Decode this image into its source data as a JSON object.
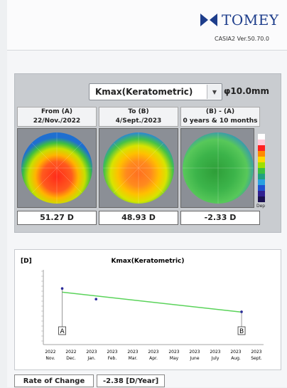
{
  "brand": {
    "name": "TOMEY",
    "model_line": "CASIA2 Ver.50.70.0"
  },
  "selector": {
    "value": "Kmax(Keratometric)",
    "diameter": "φ10.0mm"
  },
  "columns": [
    {
      "label": "From   (A)",
      "date": "22/Nov./2022",
      "value": "51.27 D"
    },
    {
      "label": "To   (B)",
      "date": "4/Sept./2023",
      "value": "48.93 D"
    },
    {
      "label": "(B) - (A)",
      "date": "0 years & 10 months",
      "value": "-2.33 D"
    }
  ],
  "color_scale": {
    "unit": "Dep"
  },
  "chart": {
    "unit_label": "[D]",
    "title": "Kmax(Keratometric)",
    "marker_a": "A",
    "marker_b": "B",
    "x_labels": [
      {
        "year": "2022",
        "month": "Nov."
      },
      {
        "year": "2022",
        "month": "Dec."
      },
      {
        "year": "2023",
        "month": "Jan."
      },
      {
        "year": "2023",
        "month": "Feb."
      },
      {
        "year": "2023",
        "month": "Mar."
      },
      {
        "year": "2023",
        "month": "Apr."
      },
      {
        "year": "2023",
        "month": "May"
      },
      {
        "year": "2023",
        "month": "June"
      },
      {
        "year": "2023",
        "month": "July"
      },
      {
        "year": "2023",
        "month": "Aug."
      },
      {
        "year": "2023",
        "month": "Sept."
      }
    ],
    "colors": {
      "trend": "#5ad35a",
      "points": "#2b2b9a"
    }
  },
  "chart_data": {
    "type": "scatter",
    "title": "Kmax(Keratometric)",
    "ylabel": "[D]",
    "points": [
      {
        "x": "2022-11-22",
        "y": 51.27
      },
      {
        "x": "2023-01-15",
        "y": 50.2
      },
      {
        "x": "2023-09-04",
        "y": 48.93
      }
    ],
    "trend_line": {
      "start": 50.9,
      "end": 48.9
    },
    "ylim": [
      46,
      53
    ]
  },
  "rate_of_change": {
    "label": "Rate of Change",
    "value": "-2.38  [D/Year]"
  }
}
